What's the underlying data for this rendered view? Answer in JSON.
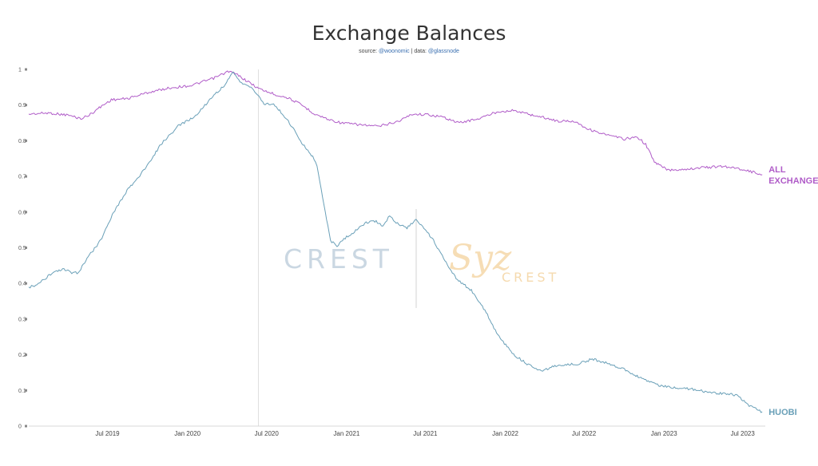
{
  "title": "Exchange Balances",
  "subtitle": {
    "prefix": "source: ",
    "source": "@woonomic",
    "separator": " | data: ",
    "data": "@glassnode"
  },
  "watermark": {
    "left": "CREST",
    "right_script": "Syz",
    "right": "CREST"
  },
  "colors": {
    "all_exchanges": "#b05cc8",
    "huobi": "#6aa0b8",
    "grid": "#e6e6e6",
    "event_line": "#d8d8d8"
  },
  "chart_data": {
    "type": "line",
    "title": "Exchange Balances",
    "x_is_date": true,
    "xlim": [
      "2019-01-01",
      "2023-08-22"
    ],
    "ylim": [
      0,
      1
    ],
    "yticks": [
      0,
      0.1,
      0.2,
      0.3,
      0.4,
      0.5,
      0.6,
      0.7,
      0.8,
      0.9,
      1
    ],
    "ytick_labels": [
      "0",
      "0.1",
      "0.2",
      "0.3",
      "0.4",
      "0.5",
      "0.6",
      "0.7",
      "0.8",
      "0.9",
      "1"
    ],
    "xticks": [
      "2019-07-01",
      "2020-01-01",
      "2020-07-01",
      "2021-01-01",
      "2021-07-01",
      "2022-01-01",
      "2022-07-01",
      "2023-01-01",
      "2023-07-01"
    ],
    "xtick_labels": [
      "Jul 2019",
      "Jan 2020",
      "Jul 2020",
      "Jan 2021",
      "Jul 2021",
      "Jan 2022",
      "Jul 2022",
      "Jan 2023",
      "Jul 2023"
    ],
    "event_line": "2020-06-12",
    "grid": false,
    "legend": "inline labels at right",
    "series": [
      {
        "name": "ALL EXCHANGES",
        "points": [
          [
            "2019-01-01",
            0.875
          ],
          [
            "2019-02-15",
            0.878
          ],
          [
            "2019-04-01",
            0.872
          ],
          [
            "2019-05-01",
            0.862
          ],
          [
            "2019-05-20",
            0.872
          ],
          [
            "2019-06-15",
            0.895
          ],
          [
            "2019-07-10",
            0.915
          ],
          [
            "2019-08-15",
            0.918
          ],
          [
            "2019-10-01",
            0.935
          ],
          [
            "2019-11-20",
            0.948
          ],
          [
            "2020-01-10",
            0.955
          ],
          [
            "2020-03-01",
            0.975
          ],
          [
            "2020-04-05",
            0.995
          ],
          [
            "2020-04-25",
            0.985
          ],
          [
            "2020-05-20",
            0.965
          ],
          [
            "2020-06-15",
            0.945
          ],
          [
            "2020-07-20",
            0.93
          ],
          [
            "2020-08-20",
            0.92
          ],
          [
            "2020-09-20",
            0.9
          ],
          [
            "2020-10-20",
            0.875
          ],
          [
            "2020-11-20",
            0.86
          ],
          [
            "2020-12-20",
            0.85
          ],
          [
            "2021-02-01",
            0.845
          ],
          [
            "2021-03-15",
            0.84
          ],
          [
            "2021-05-01",
            0.855
          ],
          [
            "2021-06-01",
            0.875
          ],
          [
            "2021-07-10",
            0.873
          ],
          [
            "2021-08-15",
            0.865
          ],
          [
            "2021-09-15",
            0.85
          ],
          [
            "2021-11-01",
            0.862
          ],
          [
            "2021-12-15",
            0.882
          ],
          [
            "2022-01-20",
            0.885
          ],
          [
            "2022-03-01",
            0.873
          ],
          [
            "2022-04-01",
            0.865
          ],
          [
            "2022-05-01",
            0.855
          ],
          [
            "2022-06-10",
            0.855
          ],
          [
            "2022-07-10",
            0.833
          ],
          [
            "2022-08-20",
            0.817
          ],
          [
            "2022-10-01",
            0.805
          ],
          [
            "2022-11-01",
            0.81
          ],
          [
            "2022-11-20",
            0.79
          ],
          [
            "2022-12-10",
            0.74
          ],
          [
            "2023-01-10",
            0.718
          ],
          [
            "2023-02-15",
            0.72
          ],
          [
            "2023-04-01",
            0.725
          ],
          [
            "2023-05-20",
            0.728
          ],
          [
            "2023-07-01",
            0.72
          ],
          [
            "2023-08-15",
            0.705
          ]
        ]
      },
      {
        "name": "HUOBI",
        "points": [
          [
            "2019-01-01",
            0.39
          ],
          [
            "2019-01-20",
            0.395
          ],
          [
            "2019-02-20",
            0.425
          ],
          [
            "2019-03-20",
            0.44
          ],
          [
            "2019-04-10",
            0.43
          ],
          [
            "2019-04-25",
            0.43
          ],
          [
            "2019-05-15",
            0.47
          ],
          [
            "2019-06-15",
            0.52
          ],
          [
            "2019-07-15",
            0.6
          ],
          [
            "2019-08-15",
            0.66
          ],
          [
            "2019-09-25",
            0.72
          ],
          [
            "2019-11-01",
            0.79
          ],
          [
            "2019-12-10",
            0.84
          ],
          [
            "2020-01-20",
            0.87
          ],
          [
            "2020-02-25",
            0.92
          ],
          [
            "2020-03-25",
            0.955
          ],
          [
            "2020-04-15",
            0.99
          ],
          [
            "2020-05-01",
            0.965
          ],
          [
            "2020-05-20",
            0.955
          ],
          [
            "2020-06-10",
            0.93
          ],
          [
            "2020-06-25",
            0.905
          ],
          [
            "2020-07-20",
            0.9
          ],
          [
            "2020-08-20",
            0.855
          ],
          [
            "2020-09-20",
            0.795
          ],
          [
            "2020-10-15",
            0.755
          ],
          [
            "2020-10-25",
            0.73
          ],
          [
            "2020-11-10",
            0.62
          ],
          [
            "2020-11-25",
            0.52
          ],
          [
            "2020-12-10",
            0.505
          ],
          [
            "2021-01-01",
            0.53
          ],
          [
            "2021-01-25",
            0.55
          ],
          [
            "2021-02-15",
            0.57
          ],
          [
            "2021-03-10",
            0.575
          ],
          [
            "2021-03-25",
            0.56
          ],
          [
            "2021-04-10",
            0.59
          ],
          [
            "2021-05-01",
            0.565
          ],
          [
            "2021-05-20",
            0.555
          ],
          [
            "2021-06-10",
            0.58
          ],
          [
            "2021-06-25",
            0.56
          ],
          [
            "2021-07-20",
            0.52
          ],
          [
            "2021-08-15",
            0.465
          ],
          [
            "2021-09-10",
            0.415
          ],
          [
            "2021-10-15",
            0.38
          ],
          [
            "2021-11-15",
            0.325
          ],
          [
            "2021-12-15",
            0.255
          ],
          [
            "2022-01-20",
            0.2
          ],
          [
            "2022-02-20",
            0.175
          ],
          [
            "2022-03-25",
            0.155
          ],
          [
            "2022-04-25",
            0.168
          ],
          [
            "2022-05-25",
            0.172
          ],
          [
            "2022-06-20",
            0.175
          ],
          [
            "2022-07-20",
            0.188
          ],
          [
            "2022-08-20",
            0.178
          ],
          [
            "2022-09-20",
            0.165
          ],
          [
            "2022-10-20",
            0.148
          ],
          [
            "2022-11-20",
            0.128
          ],
          [
            "2022-12-20",
            0.115
          ],
          [
            "2023-01-25",
            0.108
          ],
          [
            "2023-03-01",
            0.105
          ],
          [
            "2023-04-15",
            0.095
          ],
          [
            "2023-05-25",
            0.09
          ],
          [
            "2023-06-20",
            0.087
          ],
          [
            "2023-07-10",
            0.062
          ],
          [
            "2023-08-15",
            0.04
          ]
        ]
      }
    ]
  }
}
